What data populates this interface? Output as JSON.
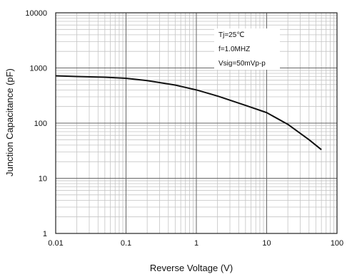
{
  "chart_data": {
    "type": "line",
    "title": "",
    "xlabel": "Reverse Voltage (V)",
    "ylabel": "Junction Capacitance (pF)",
    "x_scale": "log",
    "y_scale": "log",
    "xlim": [
      0.01,
      100
    ],
    "ylim": [
      1,
      10000
    ],
    "x_ticks": [
      "0.01",
      "0.1",
      "1",
      "10",
      "100"
    ],
    "y_ticks": [
      "1",
      "10",
      "100",
      "1000",
      "10000"
    ],
    "grid": true,
    "legend": "none",
    "annotations": [
      "Tj=25℃",
      "f=1.0MHZ",
      "Vsig=50mVp-p"
    ],
    "series": [
      {
        "x": [
          0.01,
          0.02,
          0.05,
          0.1,
          0.2,
          0.5,
          1,
          2,
          5,
          10,
          20,
          40,
          60
        ],
        "y": [
          720,
          700,
          680,
          650,
          590,
          490,
          400,
          310,
          210,
          155,
          95,
          50,
          33
        ]
      }
    ]
  }
}
